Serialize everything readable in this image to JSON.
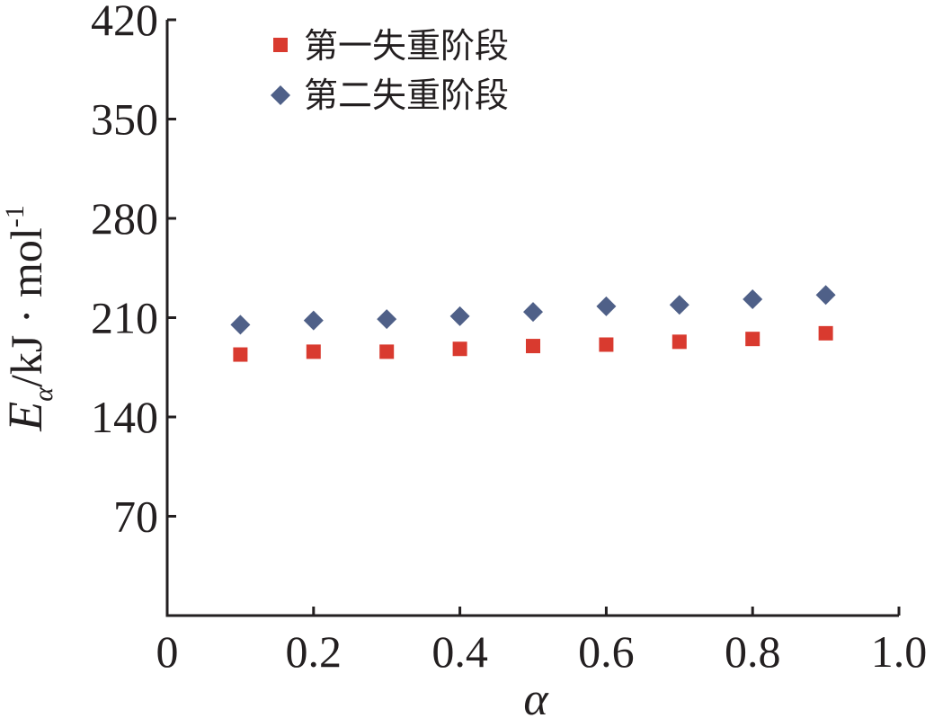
{
  "chart_data": {
    "type": "scatter",
    "xlabel": "α",
    "ylabel": {
      "symbol": "E",
      "subscript": "α",
      "unit": "/kJ · mol",
      "superscript": "-1"
    },
    "xlim": [
      0,
      1.0
    ],
    "ylim": [
      0,
      420
    ],
    "xticks": [
      "0",
      "0.2",
      "0.4",
      "0.6",
      "0.8",
      "1.0"
    ],
    "xtick_values": [
      0,
      0.2,
      0.4,
      0.6,
      0.8,
      1.0
    ],
    "yticks": [
      "70",
      "140",
      "210",
      "280",
      "350",
      "420"
    ],
    "ytick_values": [
      70,
      140,
      210,
      280,
      350,
      420
    ],
    "legend_position": "top-left",
    "series": [
      {
        "name": "第一失重阶段",
        "marker": "square",
        "color": "#d93a2f",
        "x": [
          0.1,
          0.2,
          0.3,
          0.4,
          0.5,
          0.6,
          0.7,
          0.8,
          0.9
        ],
        "y": [
          184,
          186,
          186,
          188,
          190,
          191,
          193,
          195,
          199
        ]
      },
      {
        "name": "第二失重阶段",
        "marker": "diamond",
        "color": "#4f6088",
        "x": [
          0.1,
          0.2,
          0.3,
          0.4,
          0.5,
          0.6,
          0.7,
          0.8,
          0.9
        ],
        "y": [
          205,
          208,
          209,
          211,
          214,
          218,
          219,
          223,
          226
        ]
      }
    ]
  }
}
